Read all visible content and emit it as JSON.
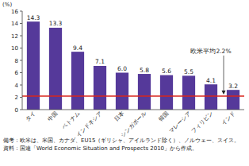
{
  "chart_data": {
    "type": "bar",
    "y_label": "(%)",
    "categories": [
      "タイ",
      "中国",
      "ベトナム",
      "インドネシア",
      "日本",
      "シンガポール",
      "韓国",
      "マレーシア",
      "フィリピン",
      "インド"
    ],
    "values": [
      14.3,
      13.3,
      9.4,
      7.1,
      6.0,
      5.8,
      5.6,
      5.5,
      4.1,
      3.2
    ],
    "value_labels": [
      "14.3",
      "13.3",
      "9.4",
      "7.1",
      "6.0",
      "5.8",
      "5.6",
      "5.5",
      "4.1",
      "3.2"
    ],
    "color": "#55399a",
    "data_labels": true,
    "ylim": [
      0,
      16
    ],
    "yticks": [
      0,
      2,
      4,
      6,
      8,
      10,
      12,
      14,
      16
    ],
    "grid": false,
    "annotations": [
      {
        "text": "欧米平均2.2%",
        "value": 2.2,
        "color": "#d9261c"
      }
    ],
    "notes": [
      "備考：欧米は、米国、カナダ、EU15（ギリシャ、アイルランド除く）、ノルウェー、スイス。",
      "資料：国連「World Economic Situation and Prospects 2010」から作成。"
    ]
  }
}
